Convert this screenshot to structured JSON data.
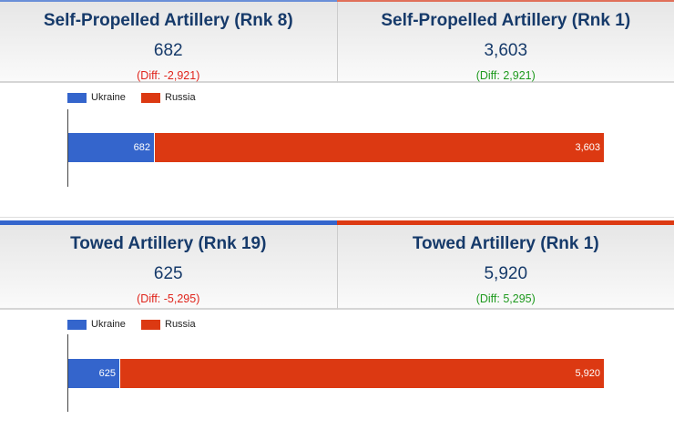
{
  "colors": {
    "ukraine": "#3465cc",
    "russia": "#dc3912",
    "neg": "#e0241b",
    "pos": "#1f9a1f"
  },
  "legend": {
    "ukraine": "Ukraine",
    "russia": "Russia"
  },
  "sections": [
    {
      "left": {
        "title": "Self-Propelled Artillery (Rnk 8)",
        "value": "682",
        "diff": "(Diff: -2,921)"
      },
      "right": {
        "title": "Self-Propelled Artillery (Rnk 1)",
        "value": "3,603",
        "diff": "(Diff: 2,921)"
      },
      "bar": {
        "ukraine_label": "682",
        "russia_label": "3,603"
      }
    },
    {
      "left": {
        "title": "Towed Artillery (Rnk 19)",
        "value": "625",
        "diff": "(Diff: -5,295)"
      },
      "right": {
        "title": "Towed Artillery (Rnk 1)",
        "value": "5,920",
        "diff": "(Diff: 5,295)"
      },
      "bar": {
        "ukraine_label": "625",
        "russia_label": "5,920"
      }
    }
  ],
  "chart_data": [
    {
      "type": "bar",
      "stacked": true,
      "categories": [
        "Self-Propelled Artillery"
      ],
      "series": [
        {
          "name": "Ukraine",
          "values": [
            682
          ]
        },
        {
          "name": "Russia",
          "values": [
            3603
          ]
        }
      ],
      "legend": "top-left"
    },
    {
      "type": "bar",
      "stacked": true,
      "categories": [
        "Towed Artillery"
      ],
      "series": [
        {
          "name": "Ukraine",
          "values": [
            625
          ]
        },
        {
          "name": "Russia",
          "values": [
            5920
          ]
        }
      ],
      "legend": "top-left"
    }
  ]
}
